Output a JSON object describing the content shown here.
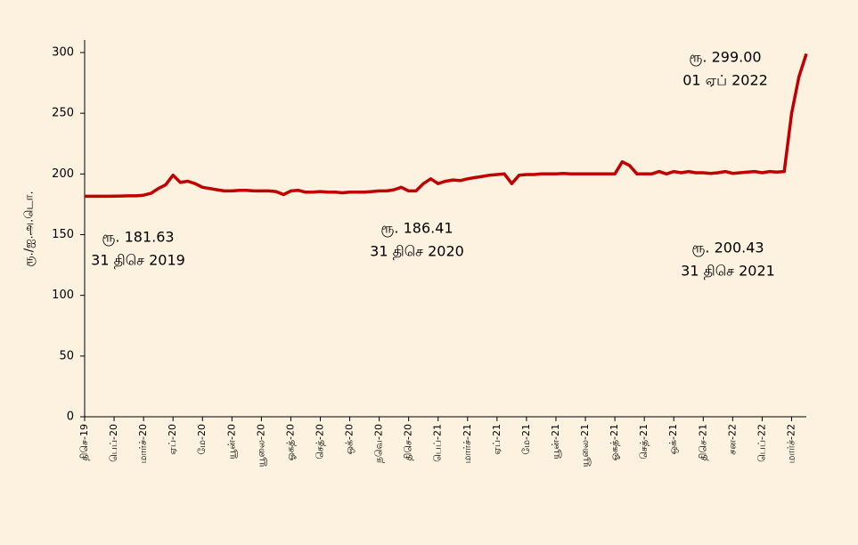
{
  "chart_data": {
    "type": "line",
    "ylabel": "ரூ./ஐ.அ.டொ.",
    "categories": [
      "திசெ-19",
      null,
      null,
      null,
      "பெப்-20",
      null,
      null,
      null,
      "மார்ச்-20",
      null,
      null,
      null,
      "ஏப்-20",
      null,
      null,
      null,
      "மே-20",
      null,
      null,
      null,
      "யூன்-20",
      null,
      null,
      null,
      "யூலை-20",
      null,
      null,
      null,
      "ஓகத்-20",
      null,
      null,
      null,
      "செத்-20",
      null,
      null,
      null,
      "ஒக்-20",
      null,
      null,
      null,
      "நவெ-20",
      null,
      null,
      null,
      "திசெ-20",
      null,
      null,
      null,
      "பெப்-21",
      null,
      null,
      null,
      "மார்ச்-21",
      null,
      null,
      null,
      "ஏப்-21",
      null,
      null,
      null,
      "மே-21",
      null,
      null,
      null,
      "யூன்-21",
      null,
      null,
      null,
      "யூலை-21",
      null,
      null,
      null,
      "ஓகத்-21",
      null,
      null,
      null,
      "செத்-21",
      null,
      null,
      null,
      "ஒக்-21",
      null,
      null,
      null,
      "திசெ-21",
      null,
      null,
      null,
      "சன-22",
      null,
      null,
      null,
      "பெப்-22",
      null,
      null,
      null,
      "மார்ச்-22",
      null,
      null
    ],
    "series": [
      {
        "color": "#c00000",
        "values": [
          181.6,
          181.6,
          181.6,
          181.6,
          181.7,
          181.8,
          182,
          182,
          182.5,
          184,
          188,
          191,
          199,
          193,
          194,
          192,
          189,
          188,
          187,
          186,
          186,
          186.5,
          186.5,
          186,
          186,
          186,
          185.5,
          183,
          186,
          186.5,
          185,
          185,
          185.5,
          185,
          185,
          184.5,
          185,
          185,
          185,
          185.5,
          186,
          186,
          187,
          189,
          186,
          186,
          192,
          196,
          192,
          194,
          195,
          194.5,
          196,
          197,
          198,
          199,
          199.5,
          200,
          192,
          199,
          199.5,
          199.5,
          200,
          200,
          200,
          200.5,
          200,
          200,
          200,
          200,
          200,
          200,
          200,
          210,
          207,
          200,
          200,
          200,
          202,
          200,
          202,
          201,
          202,
          201,
          201,
          200.5,
          201,
          202,
          200.5,
          201,
          201.5,
          202,
          201,
          202,
          201.5,
          202,
          250,
          280,
          299
        ]
      }
    ],
    "ylim": [
      0,
      310
    ],
    "yticks": [
      0,
      50,
      100,
      150,
      200,
      250,
      300
    ],
    "grid": false,
    "annotations": [
      {
        "lines": [
          "ரூ. 181.63",
          "31 திசெ 2019"
        ]
      },
      {
        "lines": [
          "ரூ. 186.41",
          "31 திசெ 2020"
        ]
      },
      {
        "lines": [
          "ரூ. 200.43",
          "31 திசெ 2021"
        ]
      },
      {
        "lines": [
          "ரூ. 299.00",
          "01 ஏப் 2022"
        ]
      }
    ]
  }
}
